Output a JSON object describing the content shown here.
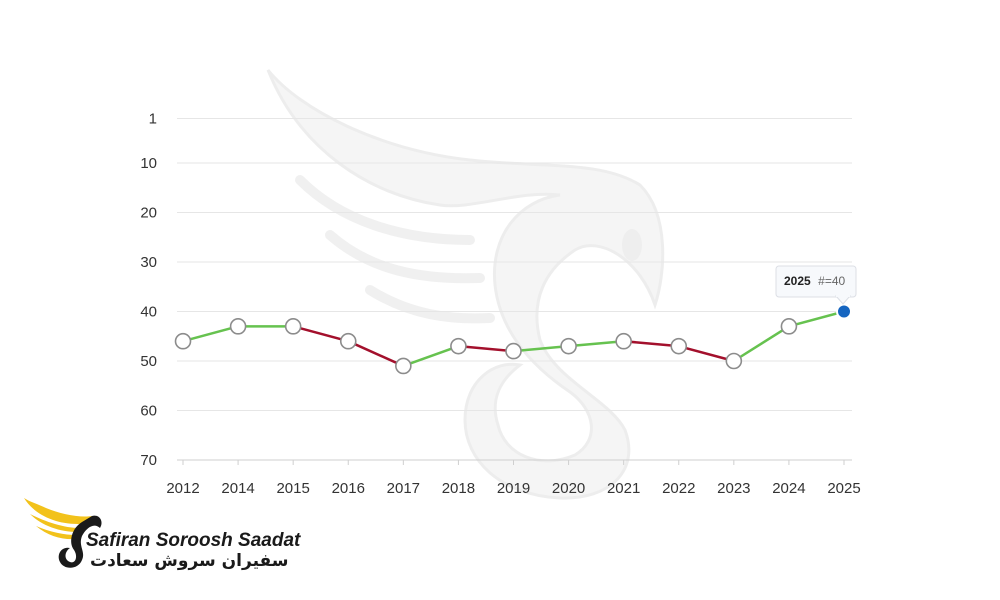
{
  "chart_data": {
    "type": "line",
    "title": "",
    "xlabel": "",
    "ylabel": "",
    "y_reversed": true,
    "y_ticks": [
      1,
      10,
      20,
      30,
      40,
      50,
      60,
      70
    ],
    "ylim": [
      1,
      70
    ],
    "grid": true,
    "x": [
      "2012",
      "2014",
      "2015",
      "2016",
      "2017",
      "2018",
      "2019",
      "2020",
      "2021",
      "2022",
      "2023",
      "2024",
      "2025"
    ],
    "series": [
      {
        "values": [
          46,
          43,
          43,
          46,
          51,
          47,
          48,
          47,
          46,
          47,
          50,
          43,
          40
        ]
      }
    ],
    "colors": {
      "improve": "#66c24f",
      "decline": "#a3102c",
      "highlight": "#1565c0",
      "marker_stroke": "#8c8c8c"
    },
    "tooltip": {
      "year": "2025",
      "label": "#=40"
    }
  },
  "logo": {
    "name_en": "Safiran Soroosh Saadat",
    "name_fa": "سفیران سروش سعادت",
    "colors": {
      "wing": "#f2c21b",
      "ink": "#1a1a1a"
    }
  }
}
